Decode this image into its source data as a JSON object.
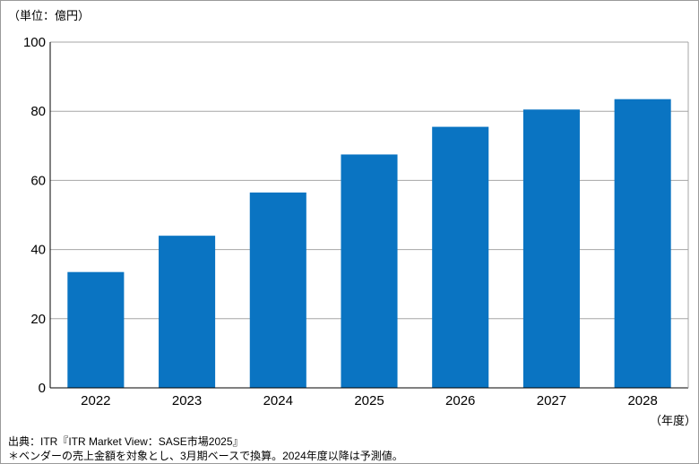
{
  "chart_data": {
    "type": "bar",
    "unit_label": "（単位：億円）",
    "x_unit_label": "（年度）",
    "categories": [
      "2022",
      "2023",
      "2024",
      "2025",
      "2026",
      "2027",
      "2028"
    ],
    "values": [
      33.5,
      44,
      56.5,
      67.5,
      75.5,
      80.5,
      83.5
    ],
    "ylim": [
      0,
      100
    ],
    "yticks": [
      0,
      20,
      40,
      60,
      80,
      100
    ],
    "grid": true,
    "bar_color": "#0a74c2",
    "grid_color": "#a6a6a6"
  },
  "source": "出典：ITR『ITR Market View：SASE市場2025』",
  "note": "＊ベンダーの売上金額を対象とし、3月期ベースで換算。2024年度以降は予測値。"
}
